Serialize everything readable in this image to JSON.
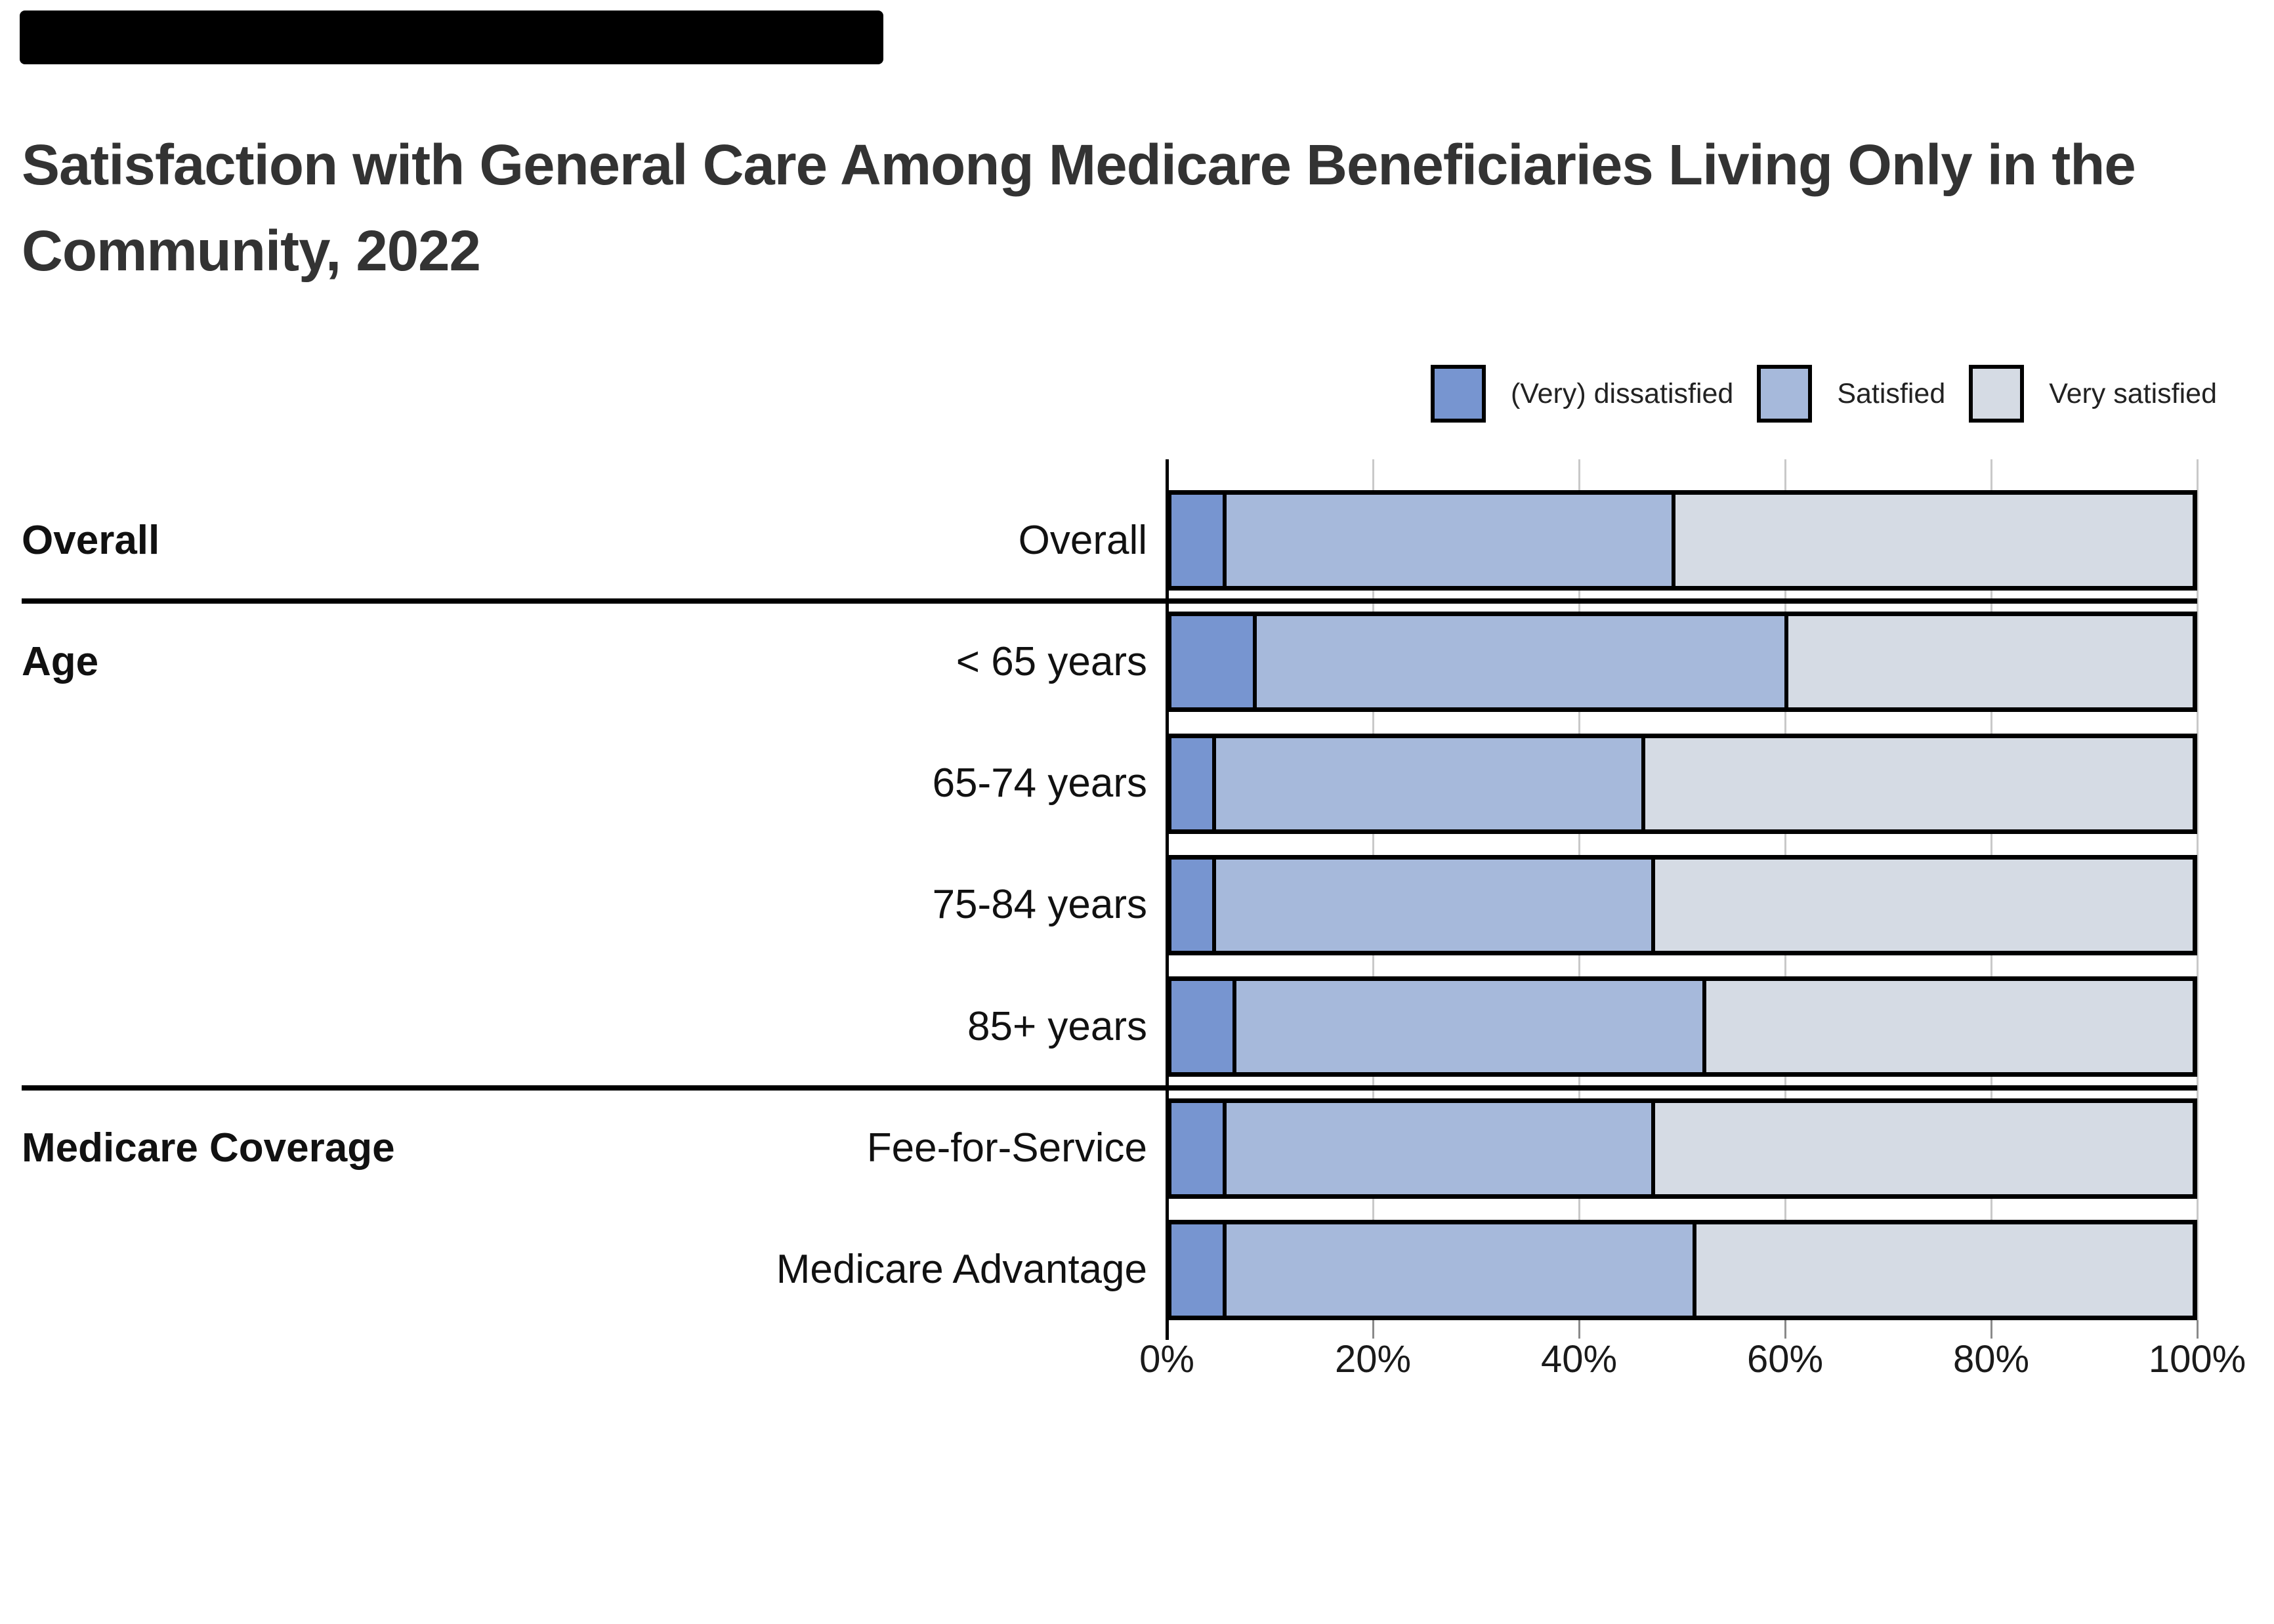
{
  "title": {
    "line1": "Satisfaction with General Care Among Medicare Beneficiaries Living Only in the",
    "line2": "Community, 2022"
  },
  "colors": {
    "banner": "#000000",
    "title": "#333333",
    "grid": "#c9c9c9",
    "bar_border": "#000000",
    "dissatisfied": "#7795d0",
    "satisfied": "#a6b9db",
    "very_satisfied": "#d5dbe4"
  },
  "legend": {
    "position": "top-right",
    "items": [
      "(Very) dissatisfied",
      "Satisfied",
      "Very satisfied"
    ]
  },
  "chart_data": {
    "type": "bar",
    "stacked": true,
    "orientation": "horizontal",
    "title": "Satisfaction with General Care Among Medicare Beneficiaries Living Only in the Community, 2022",
    "categories": [
      "Overall",
      "< 65 years",
      "65-74 years",
      "75-84 years",
      "85+ years",
      "Fee-for-Service",
      "Medicare Advantage"
    ],
    "sections": [
      {
        "label": "Overall",
        "start_row": 0,
        "end_row": 0
      },
      {
        "label": "Age",
        "start_row": 1,
        "end_row": 4
      },
      {
        "label": "Medicare Coverage",
        "start_row": 5,
        "end_row": 6
      }
    ],
    "series": [
      {
        "name": "(Very) dissatisfied",
        "color": "#7795d0",
        "values": [
          5,
          8,
          4,
          4,
          6,
          5,
          5
        ]
      },
      {
        "name": "Satisfied",
        "color": "#a6b9db",
        "values": [
          44,
          52,
          42,
          43,
          46,
          42,
          46
        ]
      },
      {
        "name": "Very satisfied",
        "color": "#d5dbe4",
        "values": [
          51,
          40,
          54,
          53,
          48,
          53,
          49
        ]
      }
    ],
    "xlabel": "",
    "ylabel": "",
    "x_ticks": [
      "0%",
      "20%",
      "40%",
      "60%",
      "80%",
      "100%"
    ],
    "xlim": [
      0,
      100
    ],
    "grid": true,
    "legend_position": "top-right"
  }
}
